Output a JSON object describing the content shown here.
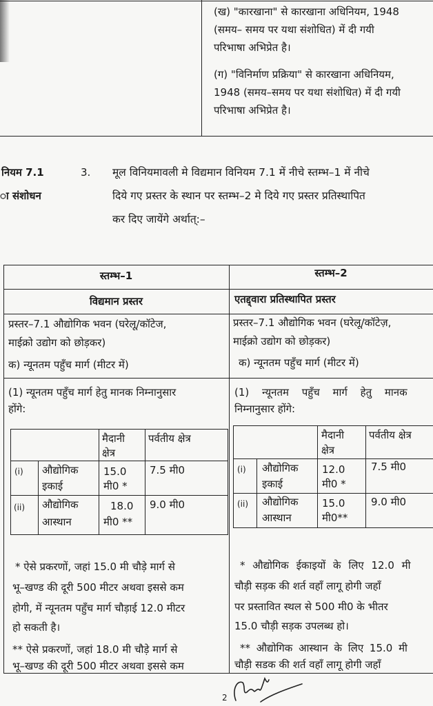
{
  "top_table": {
    "kha_lines": [
      "(ख) \"कारखाना\" से कारखाना अधिनियम, 1948",
      "(समय– समय पर यथा संशोधित) में दी गयी",
      "परिभाषा अभिप्रेत है।"
    ],
    "ga_lines": [
      "(ग) \"विनिर्माण प्रक्रिया\" से कारखाना अधिनियम,",
      "1948 (समय–समय पर यथा संशोधित) में दी गयी",
      "परिभाषा अभिप्रेत है।"
    ]
  },
  "section": {
    "side_heading": [
      "नियम 7.1",
      "ा संशोधन"
    ],
    "number": "3.",
    "lines": [
      "मूल विनियमावली मे विद्यमान विनियम 7.1 में नीचे स्तम्भ–1 में नीचे",
      "दिये गए प्रस्तर के स्थान पर स्तम्भ–2 मे दिये गए प्रस्तर प्रतिस्थापित",
      "कर दिए जायेंगे अर्थात्:–"
    ]
  },
  "main_table": {
    "col1": {
      "header": "स्तम्भ–1",
      "subheader": "विद्यमान प्रस्तर",
      "para_lines": [
        "प्रस्तर–7.1 औद्योगिक भवन (घरेलू/कॉटेज,",
        "माईक्रो उद्योग को छोड़कर)"
      ],
      "item_a": "क) न्यूनतम पहुँच मार्ग (मीटर में)",
      "standard_lines": [
        "(1) न्यूनतम पहुँच मार्ग हेतु मानक निम्नानुसार",
        "होंगे:"
      ],
      "inner_table": {
        "headers": [
          [
            "मैदानी",
            "क्षेत्र"
          ],
          [
            "पर्वतीय क्षेत्र"
          ]
        ],
        "rows": [
          {
            "num": "(i)",
            "name": [
              "औद्योगिक",
              "इकाई"
            ],
            "plain": [
              "15.0",
              "मी0 *"
            ],
            "hill": "7.5 मी0"
          },
          {
            "num": "(ii)",
            "name": [
              "औद्योगिक",
              "आस्थान"
            ],
            "plain": [
              "18.0",
              "मी0 **"
            ],
            "hill": "9.0 मी0"
          }
        ]
      },
      "footnote_lines": [
        "* ऐसे प्रकरणों, जहां 15.0 मी चौड़े मार्ग से",
        "भू–खण्ड की दूरी 500 मीटर अथवा इससे कम",
        "होगी, में न्यूनतम पहुँच मार्ग चौड़ाई 12.0 मीटर",
        "हो सकती है।",
        "** ऐसे प्रकरणों, जहां 18.0 मी चौड़े मार्ग से",
        "भू–खण्ड की दूरी 500 मीटर अथवा इससे कम"
      ]
    },
    "col2": {
      "header": "स्तम्भ–2",
      "subheader": "एतद्द्वारा प्रतिस्थापित प्रस्तर",
      "para_lines": [
        "प्रस्तर–7.1 औद्योगिक भवन (घरेलू/कॉटेज़,",
        "माईक्रो उद्योग को छोड़कर)"
      ],
      "item_a": "क) न्यूनतम पहुँच मार्ग (मीटर में)",
      "standard_lines": [
        "(1) न्यूनतम पहुँच मार्ग हेतु मानक",
        "निम्नानुसार होंगे:"
      ],
      "inner_table": {
        "headers": [
          [
            "मैदानी",
            "क्षेत्र"
          ],
          [
            "पर्वतीय क्षेत्र"
          ]
        ],
        "rows": [
          {
            "num": "(i)",
            "name": [
              "औद्योगिक",
              "इकाई"
            ],
            "plain": [
              "12.0",
              "मी0 *"
            ],
            "hill": "7.5 मी0"
          },
          {
            "num": "(ii)",
            "name": [
              "औद्योगिक",
              "आस्थान"
            ],
            "plain": [
              "15.0",
              "मी0**"
            ],
            "hill": "9.0 मी0"
          }
        ]
      },
      "footnote_lines": [
        "* औद्योगिक ईकाइयों के लिए 12.0 मी",
        "चौड़ी सड़क की शर्त वहाँ लागू होगी जहाँ",
        "पर प्रस्तावित स्थल से 500 मी0 के भीतर",
        "15.0 चौड़ी सड़क उपलब्ध हो।",
        "** औद्योगिक आस्थान के लिए 15.0 मी",
        "चौड़ी सडक की शर्त वहाँ लागू होगी जहाँ"
      ]
    }
  },
  "footer": {
    "page_number": "2"
  }
}
